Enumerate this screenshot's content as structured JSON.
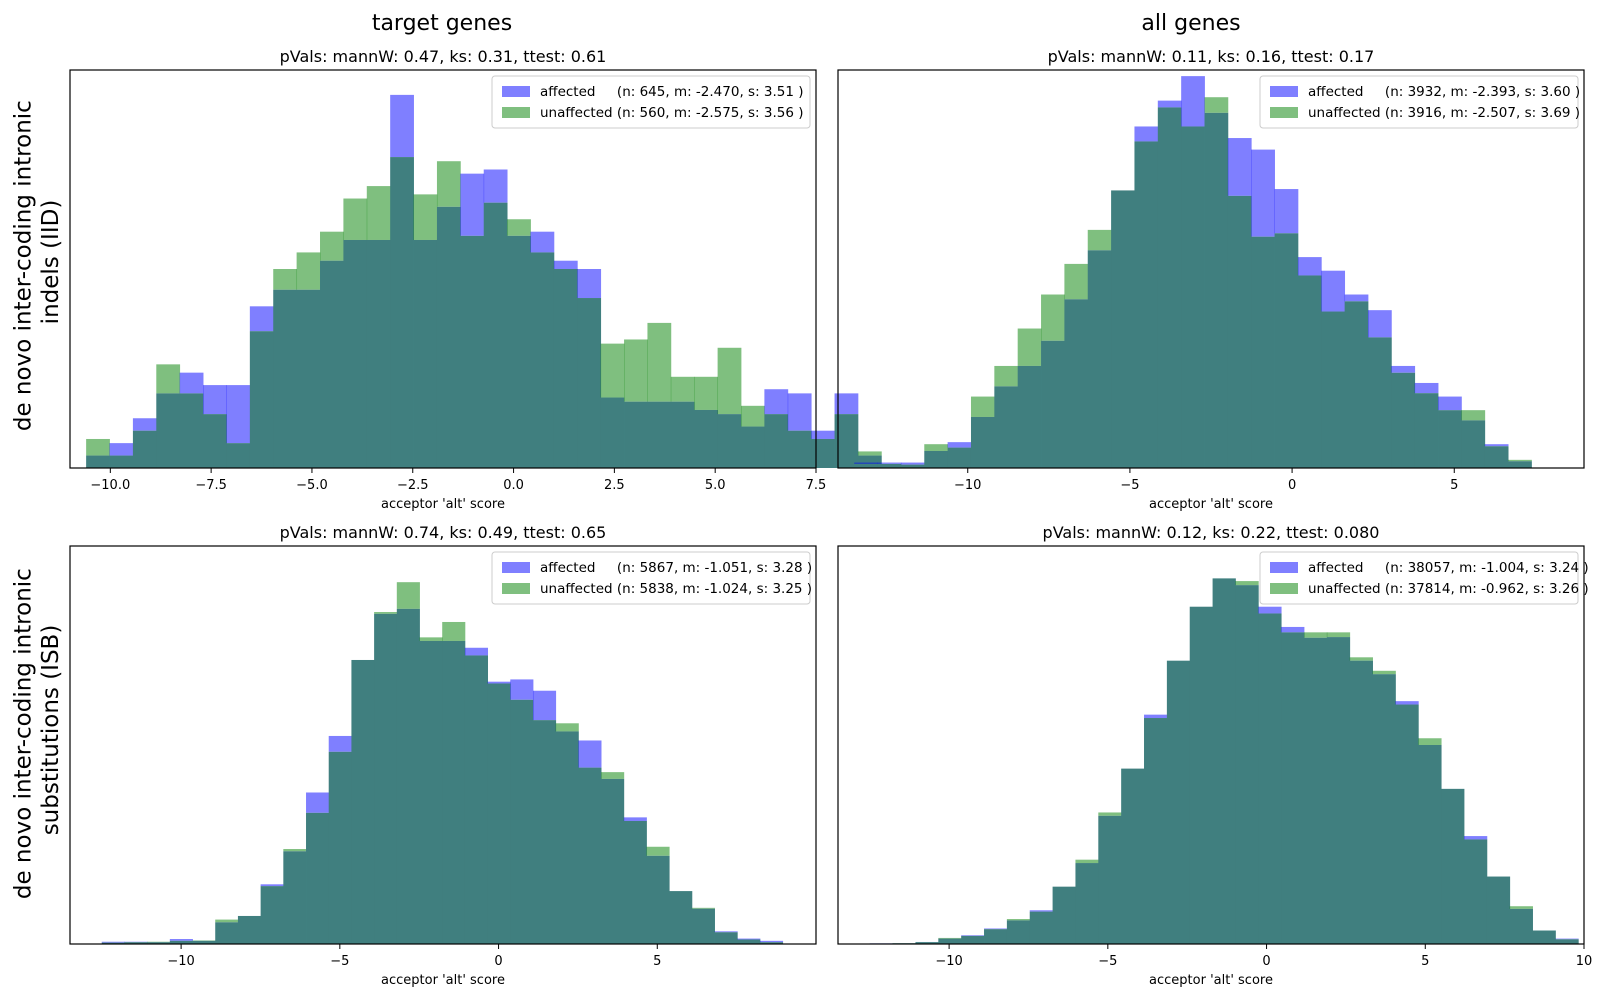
{
  "figure": {
    "column_titles": [
      "target genes",
      "all genes"
    ],
    "row_titles": [
      [
        "de novo inter-coding intronic",
        "indels (IID)"
      ],
      [
        "de novo inter-coding intronic",
        "substitutions (ISB)"
      ]
    ]
  },
  "colors": {
    "affected": "#0000ff",
    "unaffected": "#008000",
    "overlap": "#407f7f",
    "axes": "#000000"
  },
  "chart_data": [
    {
      "type": "bar",
      "title": "pVals: mannW: 0.47, ks: 0.31, ttest: 0.61",
      "xlabel": "acceptor 'alt' score",
      "ylabel": "",
      "xlim": [
        -11.0,
        7.5
      ],
      "ylim": [
        0,
        96
      ],
      "xticks": [
        -10.0,
        -7.5,
        -5.0,
        -2.5,
        0.0,
        2.5,
        5.0,
        7.5
      ],
      "xtick_labels": [
        "−10.0",
        "−7.5",
        "−5.0",
        "−2.5",
        "0.0",
        "2.5",
        "5.0",
        "7.5"
      ],
      "bin_start": -10.6,
      "bin_width": 0.58,
      "series": [
        {
          "name": "affected",
          "legend": "affected     (n: 645, m: -2.470, s: 3.51 )",
          "values": [
            3,
            6,
            12,
            18,
            23,
            20,
            20,
            39,
            43,
            43,
            50,
            55,
            55,
            90,
            55,
            63,
            71,
            72,
            56,
            57,
            50,
            48,
            17,
            16,
            16,
            16,
            14,
            13,
            10,
            19,
            18,
            9,
            18,
            3
          ]
        },
        {
          "name": "unaffected",
          "legend": "unaffected (n: 560, m: -2.575, s: 3.56 )",
          "values": [
            7,
            3,
            9,
            25,
            18,
            13,
            6,
            33,
            48,
            52,
            57,
            65,
            68,
            75,
            66,
            74,
            56,
            64,
            60,
            52,
            48,
            41,
            30,
            31,
            35,
            22,
            22,
            29,
            15,
            13,
            9,
            7,
            13,
            4
          ]
        }
      ]
    },
    {
      "type": "bar",
      "title": "pVals: mannW: 0.11, ks: 0.16, ttest: 0.17",
      "xlabel": "acceptor 'alt' score",
      "ylabel": "",
      "xlim": [
        -14.0,
        9.0
      ],
      "ylim": [
        0,
        585
      ],
      "xticks": [
        -10,
        -5,
        0,
        5
      ],
      "xtick_labels": [
        "−10",
        "−5",
        "0",
        "5"
      ],
      "bin_start": -13.5,
      "bin_width": 0.72,
      "series": [
        {
          "name": "affected",
          "legend": "affected     (n: 3932, m: -2.393, s: 3.60 )",
          "values": [
            8,
            8,
            8,
            25,
            38,
            75,
            120,
            150,
            187,
            248,
            320,
            408,
            502,
            540,
            576,
            522,
            485,
            468,
            410,
            310,
            290,
            255,
            232,
            150,
            125,
            105,
            70,
            35,
            10
          ]
        },
        {
          "name": "unaffected",
          "legend": "unaffected (n: 3916, m: -2.507, s: 3.69 )",
          "values": [
            6,
            6,
            5,
            35,
            30,
            105,
            150,
            205,
            255,
            300,
            350,
            408,
            480,
            530,
            502,
            545,
            400,
            340,
            345,
            283,
            230,
            245,
            192,
            140,
            110,
            85,
            85,
            32,
            12
          ]
        }
      ]
    },
    {
      "type": "bar",
      "title": "pVals: mannW: 0.74, ks: 0.49, ttest: 0.65",
      "xlabel": "acceptor 'alt' score",
      "ylabel": "",
      "xlim": [
        -13.5,
        10.0
      ],
      "ylim": [
        0,
        880
      ],
      "xticks": [
        -10,
        -5,
        0,
        5
      ],
      "xtick_labels": [
        "−10",
        "−5",
        "0",
        "5"
      ],
      "bin_start": -12.5,
      "bin_width": 0.715,
      "series": [
        {
          "name": "affected",
          "legend": "affected     (n: 5867, m: -1.051, s: 3.28 )",
          "values": [
            5,
            5,
            4,
            11,
            7,
            48,
            62,
            132,
            205,
            335,
            460,
            628,
            730,
            741,
            670,
            670,
            655,
            580,
            585,
            560,
            470,
            450,
            365,
            280,
            195,
            117,
            78,
            28,
            12,
            7
          ]
        },
        {
          "name": "unaffected",
          "legend": "unaffected (n: 5838, m: -1.024, s: 3.25 )",
          "values": [
            3,
            4,
            5,
            7,
            8,
            54,
            62,
            128,
            210,
            290,
            425,
            628,
            734,
            800,
            678,
            712,
            638,
            576,
            540,
            495,
            488,
            390,
            380,
            272,
            215,
            117,
            80,
            26,
            10,
            4
          ]
        }
      ]
    },
    {
      "type": "bar",
      "title": "pVals: mannW: 0.12, ks: 0.22, ttest: 0.080",
      "xlabel": "acceptor 'alt' score",
      "ylabel": "",
      "xlim": [
        -13.5,
        10.0
      ],
      "ylim": [
        0,
        5900
      ],
      "xticks": [
        -10,
        -5,
        0,
        5,
        10
      ],
      "xtick_labels": [
        "−10",
        "−5",
        "0",
        "5",
        "10"
      ],
      "bin_start": -12.5,
      "bin_width": 0.72,
      "series": [
        {
          "name": "affected",
          "legend": "affected     (n: 38057, m: -1.004, s: 3.24 )",
          "values": [
            10,
            12,
            30,
            80,
            130,
            230,
            350,
            500,
            850,
            1200,
            1900,
            2600,
            3400,
            4200,
            5000,
            5420,
            5320,
            5000,
            4700,
            4540,
            4550,
            4200,
            4000,
            3600,
            2950,
            2300,
            1600,
            1000,
            520,
            200,
            80
          ]
        },
        {
          "name": "unaffected",
          "legend": "unaffected (n: 37814, m: -0.962, s: 3.26 )",
          "values": [
            8,
            12,
            28,
            90,
            120,
            220,
            370,
            480,
            850,
            1250,
            1950,
            2600,
            3350,
            4200,
            5000,
            5420,
            5380,
            4900,
            4620,
            4620,
            4620,
            4250,
            4050,
            3550,
            3050,
            2300,
            1550,
            1000,
            560,
            200,
            70
          ]
        }
      ]
    }
  ]
}
